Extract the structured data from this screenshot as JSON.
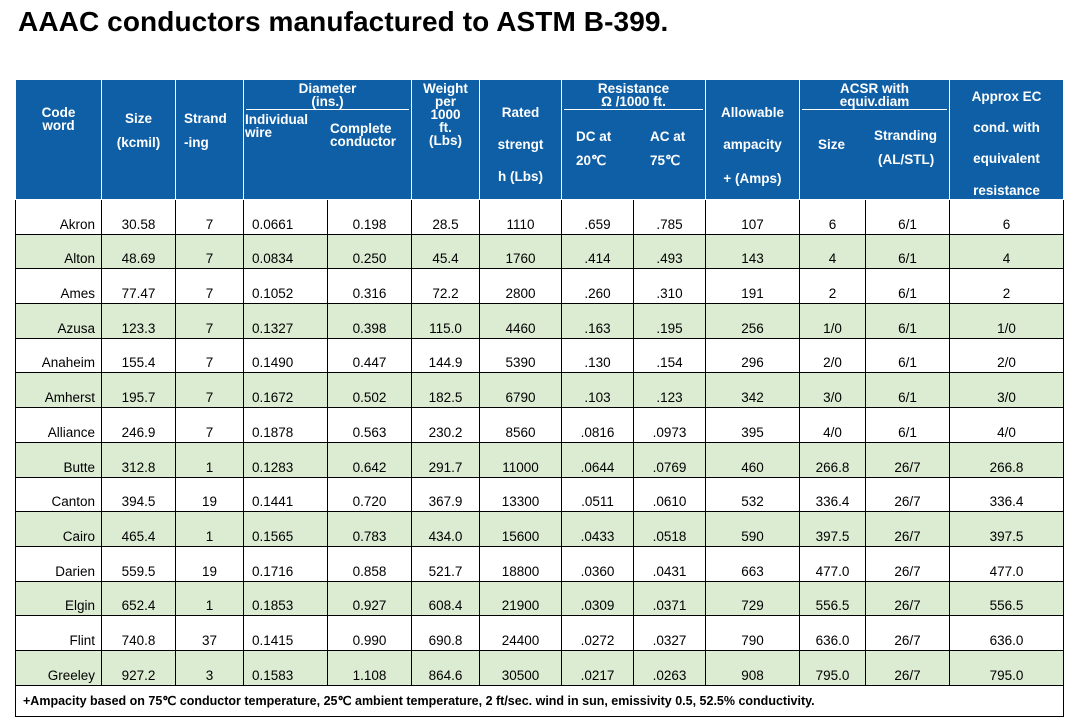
{
  "title": "AAAC conductors manufactured to ASTM B-399.",
  "header": {
    "code_word": [
      "Code",
      "word"
    ],
    "size": [
      "Size",
      "(kcmil)"
    ],
    "stranding": [
      "Strand",
      "-ing"
    ],
    "diameter_group": [
      "Diameter",
      "(ins.)"
    ],
    "individual_wire": [
      "Individual",
      "wire"
    ],
    "complete_conductor": [
      "Complete",
      "conductor"
    ],
    "weight": [
      "Weight",
      "per",
      "1000",
      "ft.",
      "(Lbs)"
    ],
    "rated_strength": [
      "Rated",
      "strengt",
      "h (Lbs)"
    ],
    "resistance_group": [
      "Resistance",
      "Ω /1000 ft."
    ],
    "dc_20": [
      "DC at",
      "20℃"
    ],
    "ac_75": [
      "AC at",
      "75℃"
    ],
    "ampacity": [
      "Allowable",
      "ampacity",
      "+ (Amps)"
    ],
    "acsr_group": [
      "ACSR with",
      "equiv.diam"
    ],
    "acsr_size": [
      "Size"
    ],
    "acsr_stranding": [
      "Stranding",
      "(AL/STL)"
    ],
    "approx_ec": [
      "Approx EC",
      "cond. with",
      "equivalent",
      "resistance"
    ]
  },
  "rows": [
    [
      "Akron",
      "30.58",
      "7",
      "0.0661",
      "0.198",
      "28.5",
      "1110",
      ".659",
      ".785",
      "107",
      "6",
      "6/1",
      "6"
    ],
    [
      "Alton",
      "48.69",
      "7",
      "0.0834",
      "0.250",
      "45.4",
      "1760",
      ".414",
      ".493",
      "143",
      "4",
      "6/1",
      "4"
    ],
    [
      "Ames",
      "77.47",
      "7",
      "0.1052",
      "0.316",
      "72.2",
      "2800",
      ".260",
      ".310",
      "191",
      "2",
      "6/1",
      "2"
    ],
    [
      "Azusa",
      "123.3",
      "7",
      "0.1327",
      "0.398",
      "115.0",
      "4460",
      ".163",
      ".195",
      "256",
      "1/0",
      "6/1",
      "1/0"
    ],
    [
      "Anaheim",
      "155.4",
      "7",
      "0.1490",
      "0.447",
      "144.9",
      "5390",
      ".130",
      ".154",
      "296",
      "2/0",
      "6/1",
      "2/0"
    ],
    [
      "Amherst",
      "195.7",
      "7",
      "0.1672",
      "0.502",
      "182.5",
      "6790",
      ".103",
      ".123",
      "342",
      "3/0",
      "6/1",
      "3/0"
    ],
    [
      "Alliance",
      "246.9",
      "7",
      "0.1878",
      "0.563",
      "230.2",
      "8560",
      ".0816",
      ".0973",
      "395",
      "4/0",
      "6/1",
      "4/0"
    ],
    [
      "Butte",
      "312.8",
      "1",
      "0.1283",
      "0.642",
      "291.7",
      "11000",
      ".0644",
      ".0769",
      "460",
      "266.8",
      "26/7",
      "266.8"
    ],
    [
      "Canton",
      "394.5",
      "19",
      "0.1441",
      "0.720",
      "367.9",
      "13300",
      ".0511",
      ".0610",
      "532",
      "336.4",
      "26/7",
      "336.4"
    ],
    [
      "Cairo",
      "465.4",
      "1",
      "0.1565",
      "0.783",
      "434.0",
      "15600",
      ".0433",
      ".0518",
      "590",
      "397.5",
      "26/7",
      "397.5"
    ],
    [
      "Darien",
      "559.5",
      "19",
      "0.1716",
      "0.858",
      "521.7",
      "18800",
      ".0360",
      ".0431",
      "663",
      "477.0",
      "26/7",
      "477.0"
    ],
    [
      "Elgin",
      "652.4",
      "1",
      "0.1853",
      "0.927",
      "608.4",
      "21900",
      ".0309",
      ".0371",
      "729",
      "556.5",
      "26/7",
      "556.5"
    ],
    [
      "Flint",
      "740.8",
      "37",
      "0.1415",
      "0.990",
      "690.8",
      "24400",
      ".0272",
      ".0327",
      "790",
      "636.0",
      "26/7",
      "636.0"
    ],
    [
      "Greeley",
      "927.2",
      "3",
      "0.1583",
      "1.108",
      "864.6",
      "30500",
      ".0217",
      ".0263",
      "908",
      "795.0",
      "26/7",
      "795.0"
    ]
  ],
  "footnote": "+Ampacity based on 75℃ conductor temperature, 25℃ ambient temperature, 2 ft/sec. wind in sun, emissivity 0.5, 52.5% conductivity."
}
